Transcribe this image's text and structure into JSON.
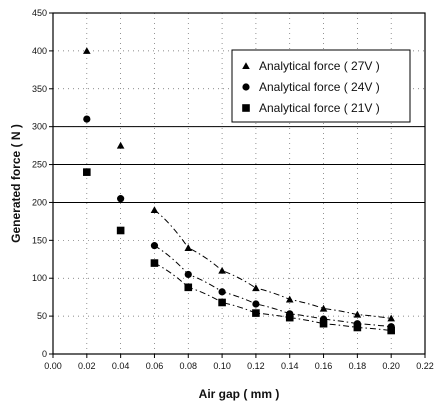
{
  "chart_data": {
    "type": "scatter",
    "title": "",
    "xlabel": "Air gap ( mm )",
    "ylabel": "Generated force ( N )",
    "xlim": [
      0.0,
      0.22
    ],
    "ylim": [
      0,
      450
    ],
    "x_ticks": [
      "0.00",
      "0.02",
      "0.04",
      "0.06",
      "0.08",
      "0.10",
      "0.12",
      "0.14",
      "0.16",
      "0.18",
      "0.20",
      "0.22"
    ],
    "y_ticks": [
      "0",
      "50",
      "100",
      "150",
      "200",
      "250",
      "300",
      "350",
      "400",
      "450"
    ],
    "grid": true,
    "legend_position": "top-right",
    "x": [
      0.02,
      0.04,
      0.06,
      0.08,
      0.1,
      0.12,
      0.14,
      0.16,
      0.18,
      0.2
    ],
    "series": [
      {
        "name": "Analytical force ( 27V )",
        "marker": "triangle",
        "values": [
          400,
          275,
          190,
          140,
          110,
          87,
          72,
          60,
          52,
          47
        ]
      },
      {
        "name": "Analytical force ( 24V )",
        "marker": "circle",
        "values": [
          310,
          205,
          143,
          105,
          82,
          66,
          53,
          46,
          40,
          36
        ]
      },
      {
        "name": "Analytical force ( 21V )",
        "marker": "square",
        "values": [
          240,
          163,
          120,
          88,
          68,
          54,
          48,
          40,
          35,
          31
        ]
      }
    ]
  }
}
